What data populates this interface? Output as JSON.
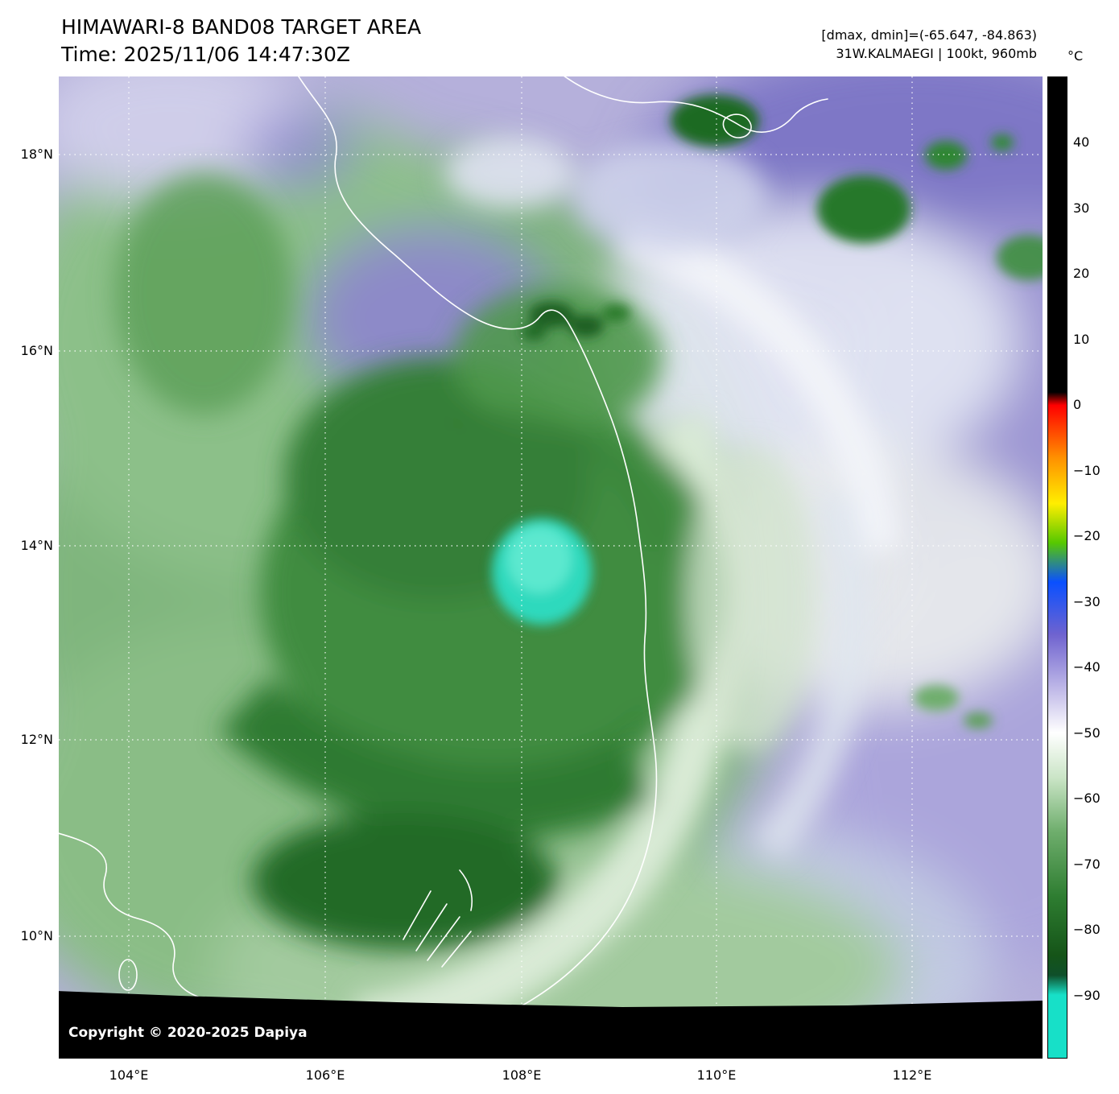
{
  "header": {
    "title": "HIMAWARI-8 BAND08 TARGET AREA",
    "time": "Time: 2025/11/06 14:47:30Z",
    "stats": "[dmax, dmin]=(-65.647, -84.863)",
    "storm": "31W.KALMAEGI | 100kt, 960mb"
  },
  "colorbar": {
    "unit": "°C",
    "ticks": [
      "40",
      "30",
      "20",
      "10",
      "0",
      "−10",
      "−20",
      "−30",
      "−40",
      "−50",
      "−60",
      "−70",
      "−80",
      "−90"
    ],
    "stops": [
      {
        "value": 50,
        "color": "#000000"
      },
      {
        "value": 2,
        "color": "#000000"
      },
      {
        "value": 0,
        "color": "#ff0000"
      },
      {
        "value": -8,
        "color": "#ff9000"
      },
      {
        "value": -15,
        "color": "#ffee00"
      },
      {
        "value": -21,
        "color": "#56c800"
      },
      {
        "value": -27,
        "color": "#0a50ff"
      },
      {
        "value": -35,
        "color": "#6f63cf"
      },
      {
        "value": -44,
        "color": "#c6c0ea"
      },
      {
        "value": -50,
        "color": "#ffffff"
      },
      {
        "value": -57,
        "color": "#c9e4c5"
      },
      {
        "value": -65,
        "color": "#6fae6d"
      },
      {
        "value": -75,
        "color": "#2e7d31"
      },
      {
        "value": -84,
        "color": "#155418"
      },
      {
        "value": -87,
        "color": "#0f4f2a"
      },
      {
        "value": -90,
        "color": "#17e0c8"
      },
      {
        "value": -100,
        "color": "#17e0c8"
      }
    ]
  },
  "axes": {
    "lat": [
      "18°N",
      "16°N",
      "14°N",
      "12°N",
      "10°N"
    ],
    "lon": [
      "104°E",
      "106°E",
      "108°E",
      "110°E",
      "112°E"
    ]
  },
  "map": {
    "copyright": "Copyright © 2020-2025 Dapiya"
  }
}
